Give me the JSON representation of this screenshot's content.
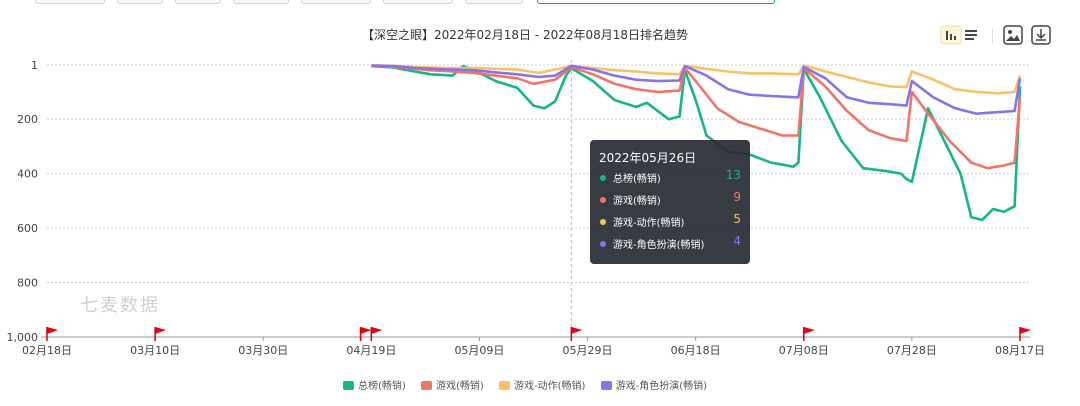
{
  "chart_data": {
    "type": "line",
    "title": "【深空之眼】2022年02月18日 - 2022年08月18日排名趋势",
    "y_axis": {
      "inverted": true,
      "ticks": [
        1,
        200,
        400,
        600,
        800,
        1000
      ],
      "tick_labels": [
        "1",
        "200",
        "400",
        "600",
        "800",
        "1,000"
      ],
      "range": [
        1,
        1000
      ]
    },
    "x_axis": {
      "range": [
        "2022-02-18",
        "2022-08-18"
      ],
      "ticks": [
        {
          "date": "2022-02-18",
          "label": "02月18日"
        },
        {
          "date": "2022-03-10",
          "label": "03月10日"
        },
        {
          "date": "2022-03-30",
          "label": "03月30日"
        },
        {
          "date": "2022-04-19",
          "label": "04月19日"
        },
        {
          "date": "2022-05-09",
          "label": "05月09日"
        },
        {
          "date": "2022-05-29",
          "label": "05月29日"
        },
        {
          "date": "2022-06-18",
          "label": "06月18日"
        },
        {
          "date": "2022-07-08",
          "label": "07月08日"
        },
        {
          "date": "2022-07-28",
          "label": "07月28日"
        },
        {
          "date": "2022-08-17",
          "label": "08月17日"
        }
      ]
    },
    "grid": true,
    "legend_position": "bottom",
    "series": [
      {
        "name": "总榜(畅销)",
        "color": "#18b48a",
        "x": [
          "2022-04-19",
          "2022-04-23",
          "2022-04-27",
          "2022-04-30",
          "2022-05-04",
          "2022-05-06",
          "2022-05-08",
          "2022-05-10",
          "2022-05-12",
          "2022-05-16",
          "2022-05-19",
          "2022-05-21",
          "2022-05-23",
          "2022-05-25",
          "2022-05-26",
          "2022-05-30",
          "2022-06-03",
          "2022-06-07",
          "2022-06-09",
          "2022-06-13",
          "2022-06-15",
          "2022-06-16",
          "2022-06-18",
          "2022-06-20",
          "2022-06-24",
          "2022-06-28",
          "2022-07-02",
          "2022-07-05",
          "2022-07-06",
          "2022-07-07",
          "2022-07-08",
          "2022-07-11",
          "2022-07-15",
          "2022-07-19",
          "2022-07-23",
          "2022-07-26",
          "2022-07-27",
          "2022-07-28",
          "2022-07-31",
          "2022-08-03",
          "2022-08-06",
          "2022-08-08",
          "2022-08-10",
          "2022-08-12",
          "2022-08-14",
          "2022-08-16",
          "2022-08-17"
        ],
        "y": [
          5,
          10,
          25,
          35,
          40,
          5,
          20,
          40,
          60,
          85,
          150,
          160,
          135,
          40,
          13,
          60,
          130,
          155,
          140,
          200,
          190,
          20,
          130,
          260,
          320,
          330,
          360,
          370,
          375,
          360,
          15,
          120,
          280,
          380,
          390,
          400,
          420,
          430,
          160,
          280,
          400,
          560,
          570,
          530,
          540,
          520,
          80
        ]
      },
      {
        "name": "游戏(畅销)",
        "color": "#f07569",
        "x": [
          "2022-04-19",
          "2022-04-23",
          "2022-04-27",
          "2022-04-30",
          "2022-05-04",
          "2022-05-08",
          "2022-05-12",
          "2022-05-16",
          "2022-05-19",
          "2022-05-23",
          "2022-05-26",
          "2022-05-30",
          "2022-06-03",
          "2022-06-07",
          "2022-06-11",
          "2022-06-15",
          "2022-06-16",
          "2022-06-18",
          "2022-06-22",
          "2022-06-26",
          "2022-06-30",
          "2022-07-04",
          "2022-07-07",
          "2022-07-08",
          "2022-07-12",
          "2022-07-16",
          "2022-07-20",
          "2022-07-24",
          "2022-07-27",
          "2022-07-28",
          "2022-07-31",
          "2022-08-04",
          "2022-08-08",
          "2022-08-11",
          "2022-08-14",
          "2022-08-16",
          "2022-08-17"
        ],
        "y": [
          3,
          8,
          15,
          20,
          25,
          30,
          40,
          50,
          70,
          55,
          9,
          35,
          70,
          90,
          100,
          95,
          12,
          60,
          160,
          210,
          235,
          260,
          260,
          12,
          80,
          170,
          240,
          270,
          280,
          100,
          180,
          280,
          360,
          380,
          370,
          360,
          120
        ]
      },
      {
        "name": "游戏-动作(畅销)",
        "color": "#f7c167",
        "x": [
          "2022-04-19",
          "2022-04-23",
          "2022-04-27",
          "2022-04-30",
          "2022-05-04",
          "2022-05-08",
          "2022-05-12",
          "2022-05-16",
          "2022-05-20",
          "2022-05-26",
          "2022-05-30",
          "2022-06-03",
          "2022-06-07",
          "2022-06-11",
          "2022-06-15",
          "2022-06-16",
          "2022-06-20",
          "2022-06-24",
          "2022-06-28",
          "2022-07-02",
          "2022-07-07",
          "2022-07-08",
          "2022-07-12",
          "2022-07-16",
          "2022-07-20",
          "2022-07-24",
          "2022-07-27",
          "2022-07-28",
          "2022-08-01",
          "2022-08-05",
          "2022-08-09",
          "2022-08-13",
          "2022-08-16",
          "2022-08-17"
        ],
        "y": [
          2,
          4,
          8,
          10,
          12,
          12,
          15,
          18,
          30,
          5,
          12,
          20,
          25,
          32,
          35,
          4,
          15,
          25,
          32,
          32,
          35,
          3,
          25,
          45,
          65,
          80,
          82,
          25,
          55,
          90,
          100,
          105,
          100,
          40
        ]
      },
      {
        "name": "游戏-角色扮演(畅销)",
        "color": "#8a72e8",
        "x": [
          "2022-04-19",
          "2022-04-23",
          "2022-04-27",
          "2022-04-30",
          "2022-05-04",
          "2022-05-08",
          "2022-05-12",
          "2022-05-16",
          "2022-05-20",
          "2022-05-23",
          "2022-05-26",
          "2022-05-30",
          "2022-06-03",
          "2022-06-07",
          "2022-06-11",
          "2022-06-15",
          "2022-06-16",
          "2022-06-20",
          "2022-06-24",
          "2022-06-28",
          "2022-07-02",
          "2022-07-07",
          "2022-07-08",
          "2022-07-12",
          "2022-07-16",
          "2022-07-20",
          "2022-07-24",
          "2022-07-27",
          "2022-07-28",
          "2022-08-01",
          "2022-08-05",
          "2022-08-09",
          "2022-08-12",
          "2022-08-16",
          "2022-08-17"
        ],
        "y": [
          3,
          5,
          12,
          15,
          18,
          20,
          28,
          35,
          45,
          40,
          4,
          18,
          40,
          55,
          60,
          58,
          5,
          40,
          90,
          110,
          115,
          120,
          8,
          50,
          120,
          140,
          145,
          150,
          60,
          120,
          160,
          180,
          175,
          170,
          50
        ]
      }
    ],
    "tooltip": {
      "title": "2022年05月26日",
      "rows": [
        {
          "name": "总榜(畅销)",
          "value": "13"
        },
        {
          "name": "游戏(畅销)",
          "value": "9"
        },
        {
          "name": "游戏-动作(畅销)",
          "value": "5"
        },
        {
          "name": "游戏-角色扮演(畅销)",
          "value": "4"
        }
      ]
    },
    "flag_dates": [
      "2022-02-18",
      "2022-03-10",
      "2022-04-17",
      "2022-04-19",
      "2022-05-26",
      "2022-07-08",
      "2022-08-17"
    ],
    "watermark": "七麦数据"
  },
  "toolbar": {
    "icons": [
      "bar-chart-icon",
      "list-icon",
      "image-icon",
      "download-icon"
    ]
  }
}
